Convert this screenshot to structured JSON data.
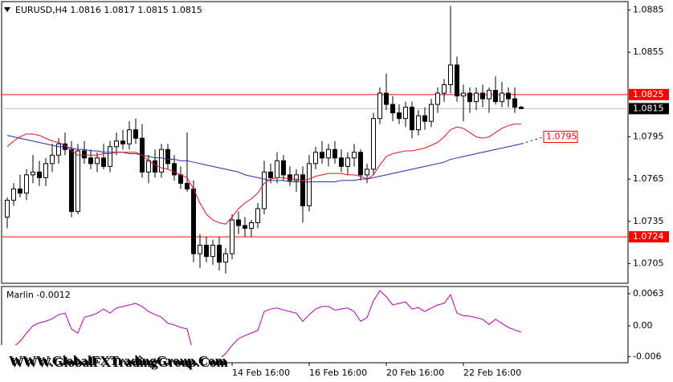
{
  "chart_data": {
    "type": "candlestick",
    "title": "EURUSD,H4  1.0816 1.0817 1.0815 1.0815",
    "categories": [
      null,
      null,
      null,
      null,
      null,
      null,
      null,
      null,
      null,
      null,
      null,
      null,
      null,
      null,
      null,
      null,
      null,
      null,
      null,
      null,
      null,
      null,
      null,
      null,
      null,
      null,
      null,
      null,
      null,
      null,
      null,
      null,
      null,
      null,
      null,
      "14 Feb 16:00",
      null,
      null,
      null,
      null,
      null,
      null,
      null,
      null,
      null,
      null,
      null,
      "16 Feb 16:00",
      null,
      null,
      null,
      null,
      null,
      null,
      null,
      null,
      null,
      null,
      null,
      "20 Feb 16:00",
      null,
      null,
      null,
      null,
      null,
      null,
      null,
      null,
      null,
      null,
      null,
      "22 Feb 16:00",
      null,
      null,
      null,
      null,
      null,
      null,
      null,
      null,
      null
    ],
    "ohlc": [
      [
        1.0738,
        1.0752,
        1.073,
        1.075
      ],
      [
        1.075,
        1.0762,
        1.0746,
        1.0758
      ],
      [
        1.0758,
        1.0768,
        1.0752,
        1.0755
      ],
      [
        1.0755,
        1.0772,
        1.075,
        1.0768
      ],
      [
        1.0768,
        1.0782,
        1.0762,
        1.077
      ],
      [
        1.077,
        1.0778,
        1.076,
        1.0766
      ],
      [
        1.0766,
        1.078,
        1.076,
        1.0776
      ],
      [
        1.0776,
        1.079,
        1.077,
        1.0782
      ],
      [
        1.0782,
        1.0794,
        1.0776,
        1.079
      ],
      [
        1.079,
        1.0798,
        1.0782,
        1.0786
      ],
      [
        1.0786,
        1.0792,
        1.0738,
        1.0742
      ],
      [
        1.0742,
        1.079,
        1.074,
        1.0785
      ],
      [
        1.0785,
        1.0792,
        1.0776,
        1.078
      ],
      [
        1.078,
        1.0786,
        1.0772,
        1.0776
      ],
      [
        1.0776,
        1.0784,
        1.077,
        1.078
      ],
      [
        1.078,
        1.079,
        1.0772,
        1.0774
      ],
      [
        1.0774,
        1.0792,
        1.077,
        1.0788
      ],
      [
        1.0788,
        1.0798,
        1.0782,
        1.0792
      ],
      [
        1.0792,
        1.08,
        1.0786,
        1.079
      ],
      [
        1.079,
        1.0806,
        1.0786,
        1.08
      ],
      [
        1.08,
        1.0808,
        1.079,
        1.0794
      ],
      [
        1.0794,
        1.0804,
        1.0766,
        1.077
      ],
      [
        1.077,
        1.0782,
        1.0762,
        1.0778
      ],
      [
        1.0778,
        1.0786,
        1.0766,
        1.077
      ],
      [
        1.077,
        1.079,
        1.0766,
        1.0786
      ],
      [
        1.0786,
        1.079,
        1.0772,
        1.0776
      ],
      [
        1.0776,
        1.0782,
        1.0764,
        1.0768
      ],
      [
        1.0768,
        1.0774,
        1.0758,
        1.0762
      ],
      [
        1.0762,
        1.0798,
        1.0756,
        1.0758
      ],
      [
        1.0758,
        1.0764,
        1.0706,
        1.0712
      ],
      [
        1.0712,
        1.0726,
        1.0702,
        1.0718
      ],
      [
        1.0718,
        1.0724,
        1.0706,
        1.071
      ],
      [
        1.071,
        1.0722,
        1.0704,
        1.0718
      ],
      [
        1.0718,
        1.0724,
        1.07,
        1.0706
      ],
      [
        1.0706,
        1.0716,
        1.0698,
        1.0712
      ],
      [
        1.0712,
        1.074,
        1.0708,
        1.0736
      ],
      [
        1.0736,
        1.0742,
        1.0726,
        1.0732
      ],
      [
        1.0732,
        1.0738,
        1.0724,
        1.073
      ],
      [
        1.073,
        1.0736,
        1.0724,
        1.0734
      ],
      [
        1.0734,
        1.0748,
        1.073,
        1.0744
      ],
      [
        1.0744,
        1.0778,
        1.074,
        1.077
      ],
      [
        1.077,
        1.0776,
        1.0762,
        1.0766
      ],
      [
        1.0766,
        1.0784,
        1.0762,
        1.0778
      ],
      [
        1.0778,
        1.0782,
        1.0764,
        1.0768
      ],
      [
        1.0768,
        1.0774,
        1.076,
        1.0764
      ],
      [
        1.0764,
        1.0772,
        1.0756,
        1.0768
      ],
      [
        1.0768,
        1.0774,
        1.0734,
        1.0746
      ],
      [
        1.0746,
        1.0782,
        1.0742,
        1.0776
      ],
      [
        1.0776,
        1.0788,
        1.0772,
        1.0784
      ],
      [
        1.0784,
        1.0792,
        1.0776,
        1.078
      ],
      [
        1.078,
        1.079,
        1.0774,
        1.0786
      ],
      [
        1.0786,
        1.0792,
        1.0776,
        1.078
      ],
      [
        1.078,
        1.0786,
        1.077,
        1.0774
      ],
      [
        1.0774,
        1.0784,
        1.0768,
        1.078
      ],
      [
        1.078,
        1.079,
        1.0774,
        1.0784
      ],
      [
        1.0784,
        1.0786,
        1.0764,
        1.0768
      ],
      [
        1.0768,
        1.0776,
        1.0762,
        1.0772
      ],
      [
        1.0772,
        1.0812,
        1.0768,
        1.0808
      ],
      [
        1.0808,
        1.083,
        1.0804,
        1.0826
      ],
      [
        1.0826,
        1.084,
        1.0814,
        1.0818
      ],
      [
        1.0818,
        1.0824,
        1.0806,
        1.0812
      ],
      [
        1.0812,
        1.0818,
        1.0804,
        1.0808
      ],
      [
        1.0808,
        1.082,
        1.0802,
        1.0816
      ],
      [
        1.0816,
        1.082,
        1.0794,
        1.08
      ],
      [
        1.08,
        1.0814,
        1.0796,
        1.081
      ],
      [
        1.081,
        1.0816,
        1.08,
        1.0806
      ],
      [
        1.0806,
        1.0822,
        1.0802,
        1.0818
      ],
      [
        1.0818,
        1.083,
        1.0812,
        1.0826
      ],
      [
        1.0826,
        1.0836,
        1.082,
        1.0832
      ],
      [
        1.0832,
        1.0888,
        1.0826,
        1.0846
      ],
      [
        1.0846,
        1.0852,
        1.082,
        1.0824
      ],
      [
        1.0824,
        1.0832,
        1.0806,
        1.0826
      ],
      [
        1.0826,
        1.083,
        1.0812,
        1.082
      ],
      [
        1.082,
        1.083,
        1.0814,
        1.0826
      ],
      [
        1.0826,
        1.0832,
        1.0816,
        1.0822
      ],
      [
        1.0822,
        1.083,
        1.0812,
        1.0828
      ],
      [
        1.0828,
        1.0838,
        1.0818,
        1.082
      ],
      [
        1.082,
        1.0834,
        1.0816,
        1.0826
      ],
      [
        1.0826,
        1.083,
        1.0816,
        1.0822
      ],
      [
        1.0822,
        1.083,
        1.0812,
        1.0816
      ],
      [
        1.0816,
        1.0817,
        1.0815,
        1.0815
      ]
    ],
    "lines": [
      {
        "color": "#1f2fa8",
        "values": [
          1.0796,
          1.0795,
          1.0794,
          1.0793,
          1.0792,
          1.0791,
          1.079,
          1.0789,
          1.0788,
          1.0788,
          1.0787,
          1.0786,
          1.0786,
          1.0785,
          1.0785,
          1.0784,
          1.0784,
          1.0784,
          1.0784,
          1.0783,
          1.0783,
          1.0782,
          1.0781,
          1.078,
          1.078,
          1.0779,
          1.0779,
          1.0778,
          1.0778,
          1.0777,
          1.0776,
          1.0775,
          1.0774,
          1.0773,
          1.0772,
          1.0771,
          1.077,
          1.0768,
          1.0767,
          1.0766,
          1.0765,
          1.0764,
          1.0764,
          1.0764,
          1.0763,
          1.0763,
          1.0763,
          1.0763,
          1.0763,
          1.0763,
          1.0763,
          1.0763,
          1.0764,
          1.0764,
          1.0764,
          1.0765,
          1.0765,
          1.0766,
          1.0767,
          1.0768,
          1.0769,
          1.077,
          1.0771,
          1.0772,
          1.0773,
          1.0774,
          1.0775,
          1.0776,
          1.0777,
          1.0779,
          1.078,
          1.0781,
          1.0782,
          1.0783,
          1.0784,
          1.0785,
          1.0786,
          1.0787,
          1.0788,
          1.0789,
          1.079
        ]
      },
      {
        "color": "#e0141e",
        "values": [
          1.0788,
          1.0792,
          1.0795,
          1.0797,
          1.0797,
          1.0796,
          1.0794,
          1.0792,
          1.0791,
          1.0789,
          1.0785,
          1.0782,
          1.0782,
          1.0782,
          1.0782,
          1.0783,
          1.0783,
          1.0784,
          1.0784,
          1.0784,
          1.0784,
          1.0782,
          1.0778,
          1.0775,
          1.0773,
          1.0772,
          1.077,
          1.0768,
          1.0766,
          1.0758,
          1.0748,
          1.074,
          1.0736,
          1.0734,
          1.0733,
          1.0738,
          1.0744,
          1.0748,
          1.0751,
          1.0755,
          1.0762,
          1.0765,
          1.0766,
          1.0766,
          1.0765,
          1.0765,
          1.0764,
          1.0765,
          1.0767,
          1.0768,
          1.0769,
          1.0769,
          1.0769,
          1.0768,
          1.0768,
          1.0767,
          1.0765,
          1.0768,
          1.0775,
          1.0781,
          1.0783,
          1.0784,
          1.0785,
          1.0785,
          1.0786,
          1.0787,
          1.0789,
          1.0791,
          1.0795,
          1.08,
          1.0802,
          1.0801,
          1.0798,
          1.0795,
          1.0794,
          1.0795,
          1.0798,
          1.0801,
          1.0803,
          1.0804,
          1.0804
        ]
      }
    ],
    "ylim": [
      1.0691,
      1.0891
    ],
    "yticks": [
      1.0885,
      1.0855,
      1.0795,
      1.0765,
      1.0735,
      1.0705
    ],
    "levels": [
      {
        "value": 1.0825,
        "label": "1.0825",
        "color": "#ff0000"
      },
      {
        "value": 1.0724,
        "label": "1.0724",
        "color": "#ff0000"
      }
    ],
    "price_line": {
      "value": 1.0815,
      "label": "1.0815",
      "color": "#000000"
    },
    "annotation": {
      "value": 1.0795,
      "label": "1.0795",
      "color": "#ff0000"
    },
    "indicator": {
      "title": "Marlin -0.0012",
      "color": "#b000b0",
      "values": [
        -0.005,
        -0.0041,
        -0.003,
        -0.0014,
        0.0,
        0.0006,
        0.0009,
        0.0014,
        0.0022,
        0.0025,
        -0.0006,
        -0.0014,
        0.0017,
        0.002,
        0.0025,
        0.0033,
        0.0025,
        0.0035,
        0.0038,
        0.0041,
        0.0044,
        0.0038,
        0.0028,
        0.0022,
        0.0017,
        0.0005,
        0.0002,
        -0.0003,
        -0.0006,
        -0.0054,
        -0.007,
        -0.007,
        -0.0068,
        -0.0065,
        -0.0054,
        -0.0038,
        -0.0025,
        -0.0019,
        -0.0014,
        -0.0009,
        0.0028,
        0.0033,
        0.0035,
        0.0031,
        0.0028,
        0.0025,
        0.0009,
        0.0022,
        0.0033,
        0.0038,
        0.0038,
        0.0031,
        0.0033,
        0.0035,
        0.0028,
        0.0009,
        0.0016,
        0.0049,
        0.0069,
        0.0057,
        0.0041,
        0.0044,
        0.0047,
        0.0033,
        0.0036,
        0.0028,
        0.0035,
        0.0041,
        0.0044,
        0.0061,
        0.0025,
        0.002,
        0.0019,
        0.0016,
        0.0013,
        0.0003,
        0.0013,
        0.0005,
        -0.0003,
        -0.0008,
        -0.0012
      ],
      "ylim": [
        -0.0072,
        0.0077
      ],
      "yticks": [
        0.0063,
        {
          "value": 0,
          "label": "0.00"
        },
        -0.006
      ]
    },
    "watermark": "WWW.GlobalFXTradingGroup.Com"
  }
}
